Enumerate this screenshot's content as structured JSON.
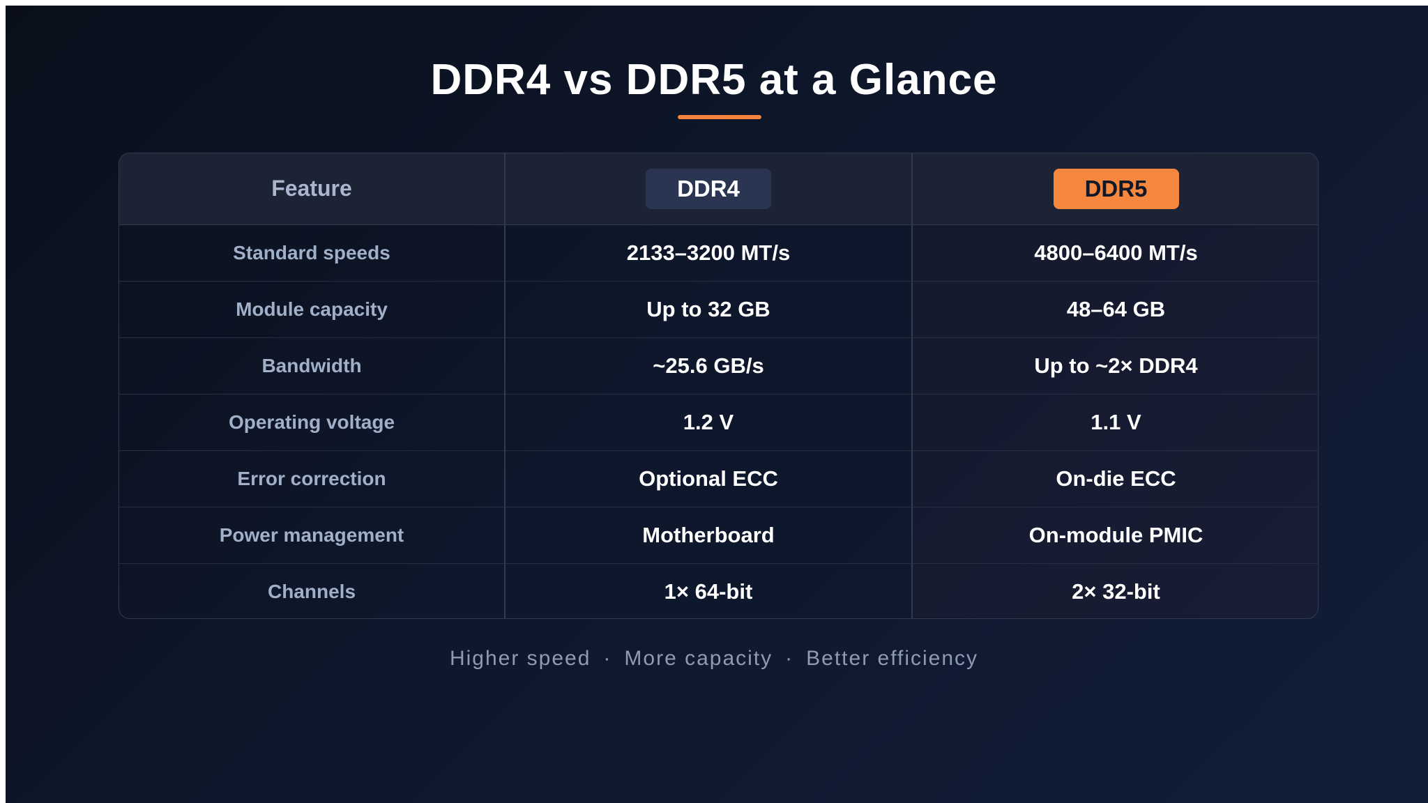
{
  "title": "DDR4 vs DDR5 at a Glance",
  "colors": {
    "accent": "#f5843d",
    "background": "#0e172b",
    "ddr4_pill": "#2a3651",
    "ddr5_pill": "#f6873f"
  },
  "table": {
    "headers": {
      "feature": "Feature",
      "ddr4": "DDR4",
      "ddr5": "DDR5"
    },
    "rows": [
      {
        "feature": "Standard speeds",
        "ddr4": "2133–3200 MT/s",
        "ddr5": "4800–6400 MT/s"
      },
      {
        "feature": "Module capacity",
        "ddr4": "Up to 32 GB",
        "ddr5": "48–64 GB"
      },
      {
        "feature": "Bandwidth",
        "ddr4": "~25.6 GB/s",
        "ddr5": "Up to ~2× DDR4"
      },
      {
        "feature": "Operating voltage",
        "ddr4": "1.2 V",
        "ddr5": "1.1 V"
      },
      {
        "feature": "Error correction",
        "ddr4": "Optional ECC",
        "ddr5": "On-die ECC"
      },
      {
        "feature": "Power management",
        "ddr4": "Motherboard",
        "ddr5": "On-module PMIC"
      },
      {
        "feature": "Channels",
        "ddr4": "1× 64-bit",
        "ddr5": "2× 32-bit"
      }
    ]
  },
  "footer": {
    "items": [
      "Higher speed",
      "More capacity",
      "Better efficiency"
    ],
    "separator": "·"
  }
}
